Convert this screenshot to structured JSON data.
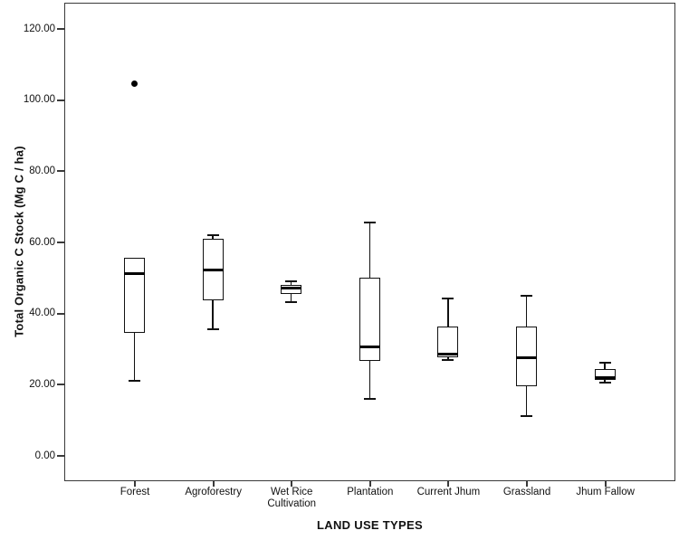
{
  "chart_data": {
    "type": "boxplot",
    "title": "",
    "xlabel": "LAND USE TYPES",
    "ylabel": "Total Organic C Stock (Mg C / ha)",
    "ylim": [
      0,
      120
    ],
    "ytick_step": 20,
    "ytick_labels": [
      "0.00",
      "20.00",
      "40.00",
      "60.00",
      "80.00",
      "100.00",
      "120.00"
    ],
    "grid": false,
    "legend": "none",
    "box_fill": "#ffffff",
    "line_color": "#111111",
    "median_color": "#000000",
    "outlier_marker": "filled-dot",
    "categories": [
      "Forest",
      "Agroforestry",
      "Wet Rice Cultivation",
      "Plantation",
      "Current Jhum",
      "Grassland",
      "Jhum Fallow"
    ],
    "series": [
      {
        "category": "Forest",
        "whisker_low": 21.0,
        "q1": 34.5,
        "median": 51.0,
        "q3": 55.5,
        "whisker_high": 55.5,
        "outliers": [
          104.5
        ]
      },
      {
        "category": "Agroforestry",
        "whisker_low": 35.5,
        "q1": 43.5,
        "median": 52.0,
        "q3": 61.0,
        "whisker_high": 61.8,
        "outliers": []
      },
      {
        "category": "Wet Rice Cultivation",
        "whisker_low": 43.0,
        "q1": 45.5,
        "median": 47.0,
        "q3": 48.0,
        "whisker_high": 49.0,
        "outliers": []
      },
      {
        "category": "Plantation",
        "whisker_low": 16.0,
        "q1": 26.5,
        "median": 30.5,
        "q3": 50.0,
        "whisker_high": 65.5,
        "outliers": []
      },
      {
        "category": "Current Jhum",
        "whisker_low": 26.7,
        "q1": 27.7,
        "median": 28.6,
        "q3": 36.3,
        "whisker_high": 44.0,
        "outliers": []
      },
      {
        "category": "Grassland",
        "whisker_low": 11.0,
        "q1": 19.5,
        "median": 27.5,
        "q3": 36.3,
        "whisker_high": 45.0,
        "outliers": []
      },
      {
        "category": "Jhum Fallow",
        "whisker_low": 20.5,
        "q1": 21.3,
        "median": 21.9,
        "q3": 24.3,
        "whisker_high": 26.0,
        "outliers": []
      }
    ]
  }
}
